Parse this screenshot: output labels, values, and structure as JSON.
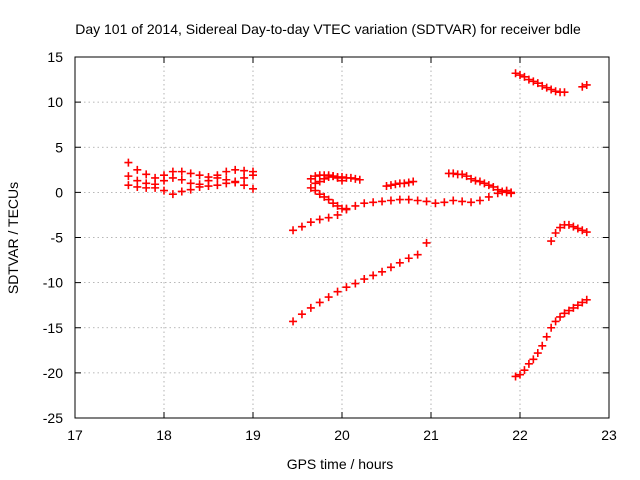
{
  "chart_data": {
    "type": "scatter",
    "title": "Day 101 of 2014, Sidereal Day-to-day VTEC variation (SDTVAR) for receiver bdle",
    "xlabel": "GPS time / hours",
    "ylabel": "SDTVAR / TECUs",
    "xlim": [
      17,
      23
    ],
    "ylim": [
      -25,
      15
    ],
    "x_ticks": [
      17,
      18,
      19,
      20,
      21,
      22,
      23
    ],
    "y_ticks": [
      -25,
      -20,
      -15,
      -10,
      -5,
      0,
      5,
      10,
      15
    ],
    "grid": true,
    "marker": "plus",
    "color": "#ff0000",
    "series": [
      {
        "x": [
          17.6,
          17.7,
          17.8,
          17.9,
          18.0,
          18.1,
          18.2,
          18.3,
          18.4,
          18.5,
          18.6,
          18.7,
          18.8,
          18.9,
          19.0
        ],
        "y": [
          3.3,
          2.5,
          2.0,
          1.6,
          1.9,
          2.3,
          2.3,
          2.1,
          1.9,
          1.7,
          1.9,
          2.3,
          2.5,
          2.4,
          2.3
        ]
      },
      {
        "x": [
          17.6,
          17.7,
          17.8,
          17.9,
          18.0,
          18.1,
          18.2,
          18.3,
          18.4,
          18.5,
          18.6,
          18.7,
          18.8,
          18.9,
          19.0
        ],
        "y": [
          1.8,
          1.3,
          1.0,
          0.9,
          1.3,
          1.6,
          1.4,
          1.0,
          0.9,
          1.3,
          1.6,
          1.4,
          1.2,
          1.6,
          1.9
        ]
      },
      {
        "x": [
          17.6,
          17.7,
          17.8,
          17.9,
          18.0,
          18.1,
          18.2,
          18.3,
          18.4,
          18.5,
          18.6,
          18.7,
          18.8,
          18.9,
          19.0
        ],
        "y": [
          0.8,
          0.6,
          0.5,
          0.5,
          0.2,
          -0.2,
          0.1,
          0.3,
          0.6,
          0.7,
          0.8,
          1.0,
          1.1,
          0.8,
          0.4
        ]
      },
      {
        "x": [
          19.45,
          19.55,
          19.65,
          19.75,
          19.85,
          19.95,
          20.05,
          20.15,
          20.25,
          20.35,
          20.45,
          20.55,
          20.65,
          20.75,
          20.85,
          20.95,
          21.05,
          21.15,
          21.25,
          21.35,
          21.45,
          21.55,
          21.65,
          21.75,
          21.85,
          21.9
        ],
        "y": [
          -4.2,
          -3.8,
          -3.3,
          -3.0,
          -2.8,
          -2.5,
          -1.9,
          -1.5,
          -1.2,
          -1.1,
          -1.0,
          -0.9,
          -0.8,
          -0.8,
          -0.9,
          -1.0,
          -1.2,
          -1.1,
          -0.9,
          -1.0,
          -1.1,
          -0.9,
          -0.5,
          -0.1,
          0.2,
          0.0
        ]
      },
      {
        "x": [
          19.45,
          19.55,
          19.65,
          19.75,
          19.85,
          19.95,
          20.05,
          20.15,
          20.25,
          20.35,
          20.45,
          20.55,
          20.65,
          20.75,
          20.85,
          20.95
        ],
        "y": [
          -14.3,
          -13.5,
          -12.8,
          -12.2,
          -11.6,
          -11.0,
          -10.5,
          -10.1,
          -9.6,
          -9.2,
          -8.8,
          -8.3,
          -7.8,
          -7.3,
          -6.9,
          -5.6
        ]
      },
      {
        "x": [
          19.65,
          19.7,
          19.75,
          19.8,
          19.85,
          19.9,
          19.95,
          20.0,
          20.05,
          20.1,
          20.15,
          20.2
        ],
        "y": [
          1.5,
          1.8,
          1.9,
          1.9,
          1.9,
          1.8,
          1.7,
          1.7,
          1.6,
          1.6,
          1.5,
          1.4
        ]
      },
      {
        "x": [
          19.65,
          19.7,
          19.75,
          19.8,
          19.85,
          19.9,
          19.95,
          20.0,
          20.05
        ],
        "y": [
          0.5,
          0.2,
          -0.2,
          -0.5,
          -0.8,
          -1.2,
          -1.5,
          -1.8,
          -1.8
        ]
      },
      {
        "x": [
          19.7,
          19.75,
          19.8,
          19.85,
          19.9,
          19.95,
          20.0
        ],
        "y": [
          1.0,
          1.2,
          1.5,
          1.7,
          1.8,
          1.6,
          1.3
        ]
      },
      {
        "x": [
          20.5,
          20.55,
          20.6,
          20.65,
          20.7,
          20.75,
          20.8
        ],
        "y": [
          0.7,
          0.8,
          0.9,
          1.0,
          1.0,
          1.1,
          1.2
        ]
      },
      {
        "x": [
          21.2,
          21.25,
          21.3,
          21.35,
          21.4,
          21.45,
          21.5,
          21.55,
          21.6,
          21.65,
          21.7,
          21.75,
          21.8,
          21.85,
          21.9
        ],
        "y": [
          2.1,
          2.1,
          2.0,
          2.0,
          1.8,
          1.5,
          1.3,
          1.2,
          1.0,
          0.8,
          0.6,
          0.3,
          0.1,
          0.0,
          -0.1
        ]
      },
      {
        "x": [
          21.95,
          22.0,
          22.05,
          22.1,
          22.15,
          22.2,
          22.25,
          22.3,
          22.35,
          22.4,
          22.45,
          22.5
        ],
        "y": [
          13.2,
          13.0,
          12.8,
          12.5,
          12.3,
          12.1,
          11.8,
          11.6,
          11.4,
          11.2,
          11.1,
          11.1
        ]
      },
      {
        "x": [
          22.7,
          22.75
        ],
        "y": [
          11.7,
          11.9
        ]
      },
      {
        "x": [
          22.35,
          22.4,
          22.45,
          22.5,
          22.55,
          22.6,
          22.65,
          22.7,
          22.75
        ],
        "y": [
          -5.4,
          -4.5,
          -3.9,
          -3.6,
          -3.6,
          -3.8,
          -4.0,
          -4.2,
          -4.4
        ]
      },
      {
        "x": [
          21.95,
          22.0,
          22.05,
          22.1,
          22.15,
          22.2,
          22.25,
          22.3,
          22.35,
          22.4,
          22.45,
          22.5,
          22.55,
          22.6,
          22.65,
          22.7,
          22.75
        ],
        "y": [
          -20.4,
          -20.2,
          -19.7,
          -19.0,
          -18.5,
          -17.8,
          -17.0,
          -16.0,
          -15.0,
          -14.3,
          -13.8,
          -13.4,
          -13.1,
          -12.8,
          -12.5,
          -12.2,
          -11.9
        ]
      }
    ]
  }
}
